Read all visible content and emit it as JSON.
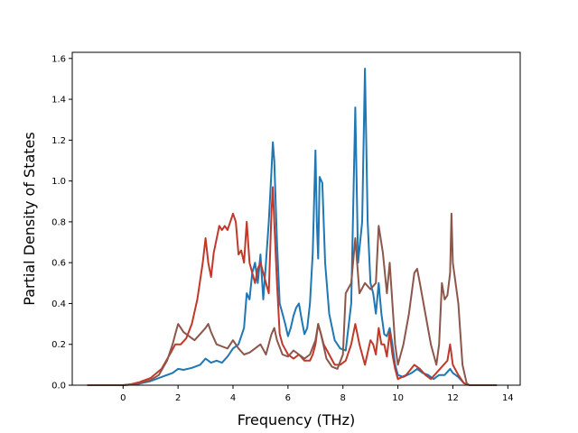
{
  "chart_data": {
    "type": "line",
    "title": "",
    "xlabel": "Frequency (THz)",
    "ylabel": "Partial Density of States",
    "xlim": [
      -1.85,
      14.45
    ],
    "ylim": [
      0,
      1.63
    ],
    "xticks": [
      0,
      2,
      4,
      6,
      8,
      10,
      12,
      14
    ],
    "yticks": [
      0.0,
      0.2,
      0.4,
      0.6,
      0.8,
      1.0,
      1.2,
      1.4,
      1.6
    ],
    "xtick_labels": [
      "0",
      "2",
      "4",
      "6",
      "8",
      "10",
      "12",
      "14"
    ],
    "ytick_labels": [
      "0.0",
      "0.2",
      "0.4",
      "0.6",
      "0.8",
      "1.0",
      "1.2",
      "1.4",
      "1.6"
    ],
    "grid": false,
    "legend": "none",
    "series": [
      {
        "color": "#1f77b4",
        "points": [
          [
            -1.3,
            0
          ],
          [
            0,
            0
          ],
          [
            0.5,
            0.005
          ],
          [
            1.0,
            0.02
          ],
          [
            1.5,
            0.045
          ],
          [
            1.8,
            0.06
          ],
          [
            2.0,
            0.08
          ],
          [
            2.2,
            0.075
          ],
          [
            2.5,
            0.085
          ],
          [
            2.8,
            0.1
          ],
          [
            3.0,
            0.13
          ],
          [
            3.2,
            0.11
          ],
          [
            3.4,
            0.12
          ],
          [
            3.6,
            0.11
          ],
          [
            3.8,
            0.14
          ],
          [
            4.0,
            0.18
          ],
          [
            4.2,
            0.2
          ],
          [
            4.4,
            0.28
          ],
          [
            4.5,
            0.45
          ],
          [
            4.6,
            0.42
          ],
          [
            4.7,
            0.55
          ],
          [
            4.8,
            0.6
          ],
          [
            4.9,
            0.5
          ],
          [
            5.0,
            0.64
          ],
          [
            5.1,
            0.42
          ],
          [
            5.2,
            0.6
          ],
          [
            5.3,
            0.8
          ],
          [
            5.4,
            1.05
          ],
          [
            5.45,
            1.19
          ],
          [
            5.5,
            1.1
          ],
          [
            5.6,
            0.7
          ],
          [
            5.7,
            0.4
          ],
          [
            5.8,
            0.35
          ],
          [
            5.9,
            0.3
          ],
          [
            6.0,
            0.24
          ],
          [
            6.1,
            0.28
          ],
          [
            6.2,
            0.34
          ],
          [
            6.3,
            0.38
          ],
          [
            6.4,
            0.4
          ],
          [
            6.5,
            0.32
          ],
          [
            6.6,
            0.25
          ],
          [
            6.7,
            0.28
          ],
          [
            6.8,
            0.4
          ],
          [
            6.9,
            0.65
          ],
          [
            7.0,
            1.15
          ],
          [
            7.05,
            0.8
          ],
          [
            7.1,
            0.62
          ],
          [
            7.15,
            1.02
          ],
          [
            7.25,
            0.99
          ],
          [
            7.35,
            0.6
          ],
          [
            7.5,
            0.35
          ],
          [
            7.7,
            0.22
          ],
          [
            7.9,
            0.18
          ],
          [
            8.1,
            0.17
          ],
          [
            8.3,
            0.4
          ],
          [
            8.45,
            1.36
          ],
          [
            8.55,
            0.6
          ],
          [
            8.7,
            0.8
          ],
          [
            8.8,
            1.55
          ],
          [
            8.9,
            0.8
          ],
          [
            9.0,
            0.5
          ],
          [
            9.1,
            0.45
          ],
          [
            9.2,
            0.35
          ],
          [
            9.3,
            0.5
          ],
          [
            9.4,
            0.35
          ],
          [
            9.5,
            0.25
          ],
          [
            9.6,
            0.24
          ],
          [
            9.7,
            0.28
          ],
          [
            9.8,
            0.2
          ],
          [
            9.9,
            0.1
          ],
          [
            10.0,
            0.05
          ],
          [
            10.2,
            0.04
          ],
          [
            10.5,
            0.06
          ],
          [
            10.7,
            0.08
          ],
          [
            10.9,
            0.06
          ],
          [
            11.1,
            0.05
          ],
          [
            11.3,
            0.03
          ],
          [
            11.5,
            0.05
          ],
          [
            11.7,
            0.05
          ],
          [
            11.9,
            0.08
          ],
          [
            12.0,
            0.06
          ],
          [
            12.2,
            0.04
          ],
          [
            12.4,
            0.01
          ],
          [
            12.6,
            0
          ],
          [
            13.6,
            0
          ]
        ]
      },
      {
        "color": "#c0392b",
        "points": [
          [
            -1.3,
            0
          ],
          [
            0,
            0
          ],
          [
            0.3,
            0.005
          ],
          [
            0.6,
            0.015
          ],
          [
            1.0,
            0.035
          ],
          [
            1.4,
            0.08
          ],
          [
            1.7,
            0.15
          ],
          [
            1.9,
            0.2
          ],
          [
            2.1,
            0.2
          ],
          [
            2.3,
            0.23
          ],
          [
            2.5,
            0.3
          ],
          [
            2.7,
            0.42
          ],
          [
            2.9,
            0.6
          ],
          [
            3.0,
            0.72
          ],
          [
            3.1,
            0.6
          ],
          [
            3.2,
            0.53
          ],
          [
            3.3,
            0.65
          ],
          [
            3.5,
            0.78
          ],
          [
            3.6,
            0.76
          ],
          [
            3.7,
            0.78
          ],
          [
            3.8,
            0.76
          ],
          [
            3.9,
            0.8
          ],
          [
            4.0,
            0.84
          ],
          [
            4.1,
            0.8
          ],
          [
            4.2,
            0.64
          ],
          [
            4.3,
            0.66
          ],
          [
            4.4,
            0.6
          ],
          [
            4.5,
            0.8
          ],
          [
            4.6,
            0.6
          ],
          [
            4.7,
            0.55
          ],
          [
            4.8,
            0.5
          ],
          [
            4.9,
            0.57
          ],
          [
            5.0,
            0.6
          ],
          [
            5.1,
            0.55
          ],
          [
            5.2,
            0.5
          ],
          [
            5.3,
            0.45
          ],
          [
            5.4,
            0.85
          ],
          [
            5.45,
            0.97
          ],
          [
            5.5,
            0.8
          ],
          [
            5.6,
            0.5
          ],
          [
            5.7,
            0.25
          ],
          [
            5.8,
            0.2
          ],
          [
            6.0,
            0.15
          ],
          [
            6.2,
            0.13
          ],
          [
            6.4,
            0.15
          ],
          [
            6.6,
            0.12
          ],
          [
            6.8,
            0.12
          ],
          [
            6.9,
            0.15
          ],
          [
            7.0,
            0.2
          ],
          [
            7.1,
            0.3
          ],
          [
            7.2,
            0.25
          ],
          [
            7.3,
            0.2
          ],
          [
            7.5,
            0.15
          ],
          [
            7.7,
            0.1
          ],
          [
            7.9,
            0.1
          ],
          [
            8.1,
            0.12
          ],
          [
            8.3,
            0.2
          ],
          [
            8.45,
            0.3
          ],
          [
            8.6,
            0.2
          ],
          [
            8.8,
            0.1
          ],
          [
            9.0,
            0.22
          ],
          [
            9.1,
            0.2
          ],
          [
            9.2,
            0.15
          ],
          [
            9.3,
            0.28
          ],
          [
            9.4,
            0.2
          ],
          [
            9.5,
            0.2
          ],
          [
            9.6,
            0.14
          ],
          [
            9.7,
            0.26
          ],
          [
            9.8,
            0.15
          ],
          [
            9.9,
            0.08
          ],
          [
            10.0,
            0.03
          ],
          [
            10.3,
            0.05
          ],
          [
            10.6,
            0.1
          ],
          [
            10.8,
            0.08
          ],
          [
            11.0,
            0.05
          ],
          [
            11.2,
            0.03
          ],
          [
            11.4,
            0.06
          ],
          [
            11.6,
            0.09
          ],
          [
            11.8,
            0.12
          ],
          [
            11.9,
            0.2
          ],
          [
            12.0,
            0.1
          ],
          [
            12.2,
            0.05
          ],
          [
            12.4,
            0.01
          ],
          [
            12.6,
            0
          ],
          [
            13.6,
            0
          ]
        ]
      },
      {
        "color": "#8c564b",
        "points": [
          [
            -1.3,
            0
          ],
          [
            0,
            0
          ],
          [
            0.5,
            0.005
          ],
          [
            1.0,
            0.025
          ],
          [
            1.3,
            0.05
          ],
          [
            1.6,
            0.12
          ],
          [
            1.8,
            0.2
          ],
          [
            1.9,
            0.25
          ],
          [
            2.0,
            0.3
          ],
          [
            2.1,
            0.28
          ],
          [
            2.2,
            0.26
          ],
          [
            2.4,
            0.24
          ],
          [
            2.6,
            0.22
          ],
          [
            2.8,
            0.25
          ],
          [
            3.0,
            0.28
          ],
          [
            3.1,
            0.3
          ],
          [
            3.2,
            0.26
          ],
          [
            3.4,
            0.2
          ],
          [
            3.6,
            0.19
          ],
          [
            3.8,
            0.18
          ],
          [
            4.0,
            0.22
          ],
          [
            4.2,
            0.18
          ],
          [
            4.4,
            0.15
          ],
          [
            4.6,
            0.16
          ],
          [
            4.8,
            0.18
          ],
          [
            5.0,
            0.2
          ],
          [
            5.2,
            0.15
          ],
          [
            5.4,
            0.25
          ],
          [
            5.5,
            0.28
          ],
          [
            5.6,
            0.22
          ],
          [
            5.8,
            0.15
          ],
          [
            6.0,
            0.14
          ],
          [
            6.2,
            0.17
          ],
          [
            6.4,
            0.15
          ],
          [
            6.6,
            0.13
          ],
          [
            6.8,
            0.15
          ],
          [
            7.0,
            0.22
          ],
          [
            7.1,
            0.3
          ],
          [
            7.2,
            0.25
          ],
          [
            7.4,
            0.13
          ],
          [
            7.6,
            0.09
          ],
          [
            7.8,
            0.08
          ],
          [
            8.0,
            0.15
          ],
          [
            8.1,
            0.45
          ],
          [
            8.3,
            0.5
          ],
          [
            8.45,
            0.72
          ],
          [
            8.6,
            0.45
          ],
          [
            8.8,
            0.5
          ],
          [
            9.0,
            0.47
          ],
          [
            9.2,
            0.5
          ],
          [
            9.3,
            0.78
          ],
          [
            9.45,
            0.65
          ],
          [
            9.6,
            0.45
          ],
          [
            9.7,
            0.6
          ],
          [
            9.8,
            0.4
          ],
          [
            9.9,
            0.2
          ],
          [
            10.0,
            0.1
          ],
          [
            10.2,
            0.2
          ],
          [
            10.4,
            0.35
          ],
          [
            10.6,
            0.55
          ],
          [
            10.7,
            0.57
          ],
          [
            10.8,
            0.5
          ],
          [
            11.0,
            0.35
          ],
          [
            11.2,
            0.2
          ],
          [
            11.4,
            0.1
          ],
          [
            11.5,
            0.2
          ],
          [
            11.6,
            0.5
          ],
          [
            11.7,
            0.42
          ],
          [
            11.8,
            0.44
          ],
          [
            11.9,
            0.55
          ],
          [
            11.95,
            0.84
          ],
          [
            12.0,
            0.6
          ],
          [
            12.2,
            0.4
          ],
          [
            12.35,
            0.1
          ],
          [
            12.5,
            0.01
          ],
          [
            12.6,
            0
          ],
          [
            13.6,
            0
          ]
        ]
      }
    ]
  }
}
